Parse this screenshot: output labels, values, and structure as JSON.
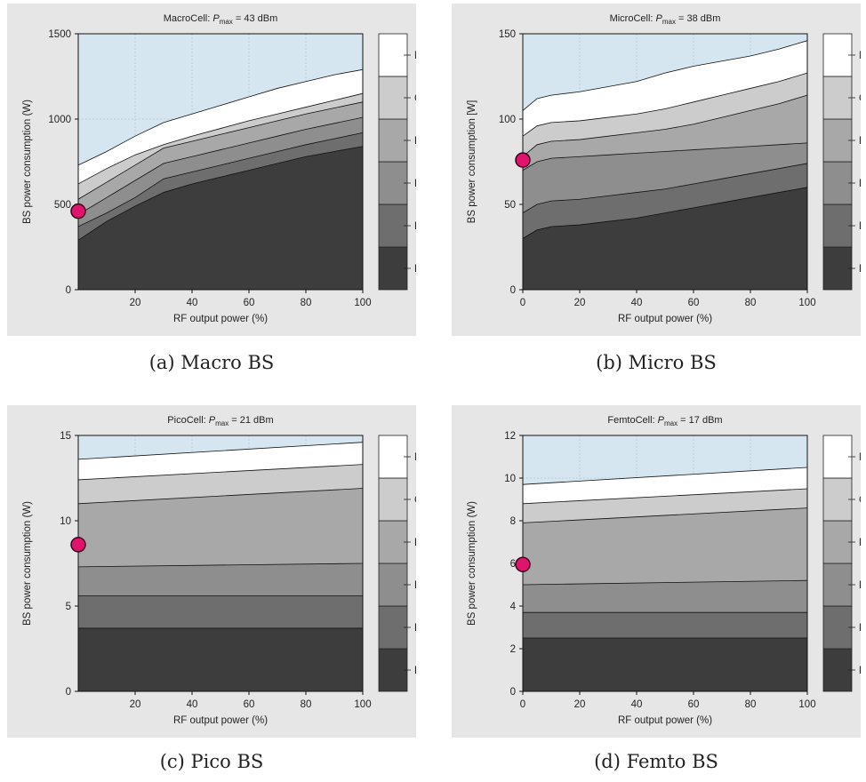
{
  "legend_components": [
    "PA",
    "RF",
    "BB",
    "DC",
    "CO",
    "MS"
  ],
  "colors": {
    "PA": "#3d3d3d",
    "RF": "#6e6e6e",
    "BB": "#8e8e8e",
    "DC": "#a8a8a8",
    "CO": "#cccccc",
    "MS": "#ffffff",
    "above": "#d6e6f0",
    "panel": "#e6e6e6",
    "marker": "#e0146e"
  },
  "captions": [
    "(a) Macro BS",
    "(b) Micro BS",
    "(c) Pico BS",
    "(d) Femto BS"
  ],
  "chart_data": [
    {
      "type": "area",
      "title_prefix": "MacroCell: ",
      "title_p": "P",
      "title_sub": "max",
      "title_suffix": " = 43 dBm",
      "xlabel": "RF output power (%)",
      "ylabel": "BS power consumption (W)",
      "xlim": [
        0,
        100
      ],
      "ylim": [
        0,
        1500
      ],
      "xticks": [
        20,
        40,
        60,
        80,
        100
      ],
      "yticks": [
        0,
        500,
        1000,
        1500
      ],
      "grid": true,
      "legend_position": "right",
      "x": [
        0,
        10,
        20,
        30,
        40,
        50,
        60,
        70,
        80,
        90,
        100
      ],
      "series": [
        {
          "name": "PA",
          "values": [
            290,
            400,
            490,
            570,
            620,
            660,
            700,
            740,
            780,
            810,
            840
          ]
        },
        {
          "name": "RF",
          "values": [
            370,
            450,
            540,
            650,
            690,
            730,
            770,
            810,
            850,
            885,
            920
          ]
        },
        {
          "name": "BB",
          "values": [
            440,
            540,
            640,
            740,
            780,
            820,
            860,
            900,
            940,
            975,
            1010
          ]
        },
        {
          "name": "DC",
          "values": [
            530,
            630,
            730,
            830,
            870,
            910,
            950,
            990,
            1030,
            1065,
            1100
          ]
        },
        {
          "name": "CO",
          "values": [
            620,
            710,
            790,
            850,
            900,
            945,
            990,
            1030,
            1070,
            1110,
            1150
          ]
        },
        {
          "name": "MS",
          "values": [
            730,
            810,
            900,
            980,
            1030,
            1080,
            1130,
            1180,
            1220,
            1260,
            1290
          ]
        }
      ],
      "marker": {
        "x": 0,
        "y": 460
      }
    },
    {
      "type": "area",
      "title_prefix": "MicroCell: ",
      "title_p": "P",
      "title_sub": "max",
      "title_suffix": " = 38 dBm",
      "xlabel": "RF output power (%)",
      "ylabel": "BS power consumption [W]",
      "xlim": [
        0,
        100
      ],
      "ylim": [
        0,
        150
      ],
      "xticks": [
        0,
        20,
        40,
        60,
        80,
        100
      ],
      "yticks": [
        0,
        50,
        100,
        150
      ],
      "grid": true,
      "legend_position": "right",
      "x": [
        0,
        5,
        10,
        20,
        30,
        40,
        50,
        60,
        70,
        80,
        90,
        100
      ],
      "series": [
        {
          "name": "PA",
          "values": [
            30,
            35,
            37,
            38,
            40,
            42,
            45,
            48,
            51,
            54,
            57,
            60
          ]
        },
        {
          "name": "RF",
          "values": [
            45,
            50,
            52,
            53,
            55,
            57,
            59,
            62,
            65,
            68,
            71,
            74
          ]
        },
        {
          "name": "BB",
          "values": [
            70,
            75,
            77,
            78,
            79,
            80,
            81,
            82,
            83,
            84,
            85,
            86
          ]
        },
        {
          "name": "DC",
          "values": [
            78,
            85,
            87,
            88,
            90,
            92,
            94,
            97,
            101,
            105,
            109,
            114
          ]
        },
        {
          "name": "CO",
          "values": [
            90,
            96,
            98,
            99,
            101,
            103,
            106,
            110,
            114,
            118,
            122,
            127
          ]
        },
        {
          "name": "MS",
          "values": [
            105,
            112,
            114,
            116,
            119,
            122,
            127,
            131,
            134,
            137,
            141,
            146
          ]
        }
      ],
      "marker": {
        "x": 0,
        "y": 76
      }
    },
    {
      "type": "area",
      "title_prefix": "PicoCell: ",
      "title_p": "P",
      "title_sub": "max",
      "title_suffix": " = 21 dBm",
      "xlabel": "RF output power (%)",
      "ylabel": "BS power consumption (W)",
      "xlim": [
        0,
        100
      ],
      "ylim": [
        0,
        15
      ],
      "xticks": [
        20,
        40,
        60,
        80,
        100
      ],
      "yticks": [
        0,
        5,
        10,
        15
      ],
      "grid": true,
      "legend_position": "right",
      "x": [
        0,
        100
      ],
      "series": [
        {
          "name": "PA",
          "values": [
            3.7,
            3.7
          ]
        },
        {
          "name": "RF",
          "values": [
            5.6,
            5.6
          ]
        },
        {
          "name": "BB",
          "values": [
            7.3,
            7.5
          ]
        },
        {
          "name": "DC",
          "values": [
            11.0,
            11.9
          ]
        },
        {
          "name": "CO",
          "values": [
            12.4,
            13.3
          ]
        },
        {
          "name": "MS",
          "values": [
            13.6,
            14.6
          ]
        }
      ],
      "marker": {
        "x": 0,
        "y": 8.6
      }
    },
    {
      "type": "area",
      "title_prefix": "FemtoCell: ",
      "title_p": "P",
      "title_sub": "max",
      "title_suffix": " = 17 dBm",
      "xlabel": "RF output power (%)",
      "ylabel": "BS power consumption (W)",
      "xlim": [
        0,
        100
      ],
      "ylim": [
        0,
        12
      ],
      "xticks": [
        0,
        20,
        40,
        60,
        80,
        100
      ],
      "yticks": [
        0,
        2,
        4,
        6,
        8,
        10,
        12
      ],
      "grid": true,
      "legend_position": "right",
      "x": [
        0,
        100
      ],
      "series": [
        {
          "name": "PA",
          "values": [
            2.5,
            2.5
          ]
        },
        {
          "name": "RF",
          "values": [
            3.7,
            3.7
          ]
        },
        {
          "name": "BB",
          "values": [
            5.0,
            5.2
          ]
        },
        {
          "name": "DC",
          "values": [
            7.9,
            8.6
          ]
        },
        {
          "name": "CO",
          "values": [
            8.8,
            9.5
          ]
        },
        {
          "name": "MS",
          "values": [
            9.7,
            10.5
          ]
        }
      ],
      "marker": {
        "x": 0,
        "y": 5.95
      }
    }
  ]
}
